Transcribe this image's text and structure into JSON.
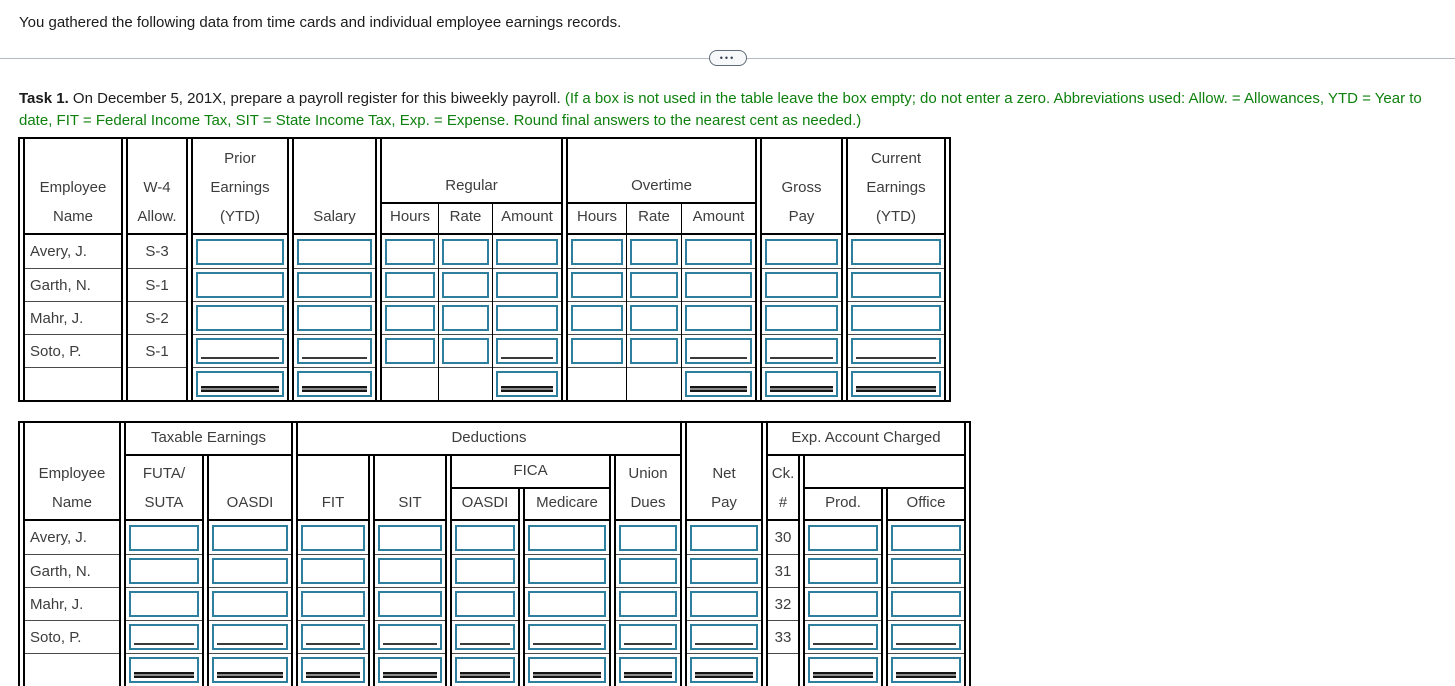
{
  "intro": "You gathered the following data from time cards and individual employee earnings records.",
  "divider": {
    "ellipsis": "•••"
  },
  "task": {
    "label": "Task 1.",
    "instruction": " On December 5, 201X, prepare a payroll register for this biweekly payroll. ",
    "note": "(If a box is not used in the table leave the box empty; do not enter a zero. Abbreviations used: Allow. = Allowances, YTD = Year to date, FIT = Federal Income Tax, SIT = State Income Tax, Exp. = Expense. Round final answers to the nearest cent as needed.)"
  },
  "colors": {
    "input_border": "#2e7f9e",
    "note_green": "#0e810e",
    "table_border": "#000000",
    "table_text": "#3d3d3d"
  },
  "table1": {
    "headers": {
      "employee": "Employee\nName",
      "w4": "W-4\nAllow.",
      "prior": "Prior\nEarnings\n(YTD)",
      "salary": "Salary",
      "regular": "Regular",
      "overtime": "Overtime",
      "hours": "Hours",
      "rate": "Rate",
      "amount": "Amount",
      "gross": "Gross\nPay",
      "current": "Current\nEarnings\n(YTD)"
    },
    "rows": [
      {
        "name": "Avery, J.",
        "w4": "S-3"
      },
      {
        "name": "Garth, N.",
        "w4": "S-1"
      },
      {
        "name": "Mahr, J.",
        "w4": "S-2"
      },
      {
        "name": "Soto, P.",
        "w4": "S-1"
      }
    ]
  },
  "table2": {
    "headers": {
      "employee": "Employee\nName",
      "taxable": "Taxable Earnings",
      "futa_suta": "FUTA/\nSUTA",
      "oasdi": "OASDI",
      "deductions": "Deductions",
      "fit": "FIT",
      "sit": "SIT",
      "fica": "FICA",
      "fica_oasdi": "OASDI",
      "medicare": "Medicare",
      "union": "Union\nDues",
      "net": "Net\nPay",
      "exp": "Exp. Account Charged",
      "ck": "Ck.\n#",
      "prod": "Prod.",
      "office": "Office"
    },
    "rows": [
      {
        "name": "Avery, J.",
        "ck": "30"
      },
      {
        "name": "Garth, N.",
        "ck": "31"
      },
      {
        "name": "Mahr, J.",
        "ck": "32"
      },
      {
        "name": "Soto, P.",
        "ck": "33"
      }
    ]
  }
}
